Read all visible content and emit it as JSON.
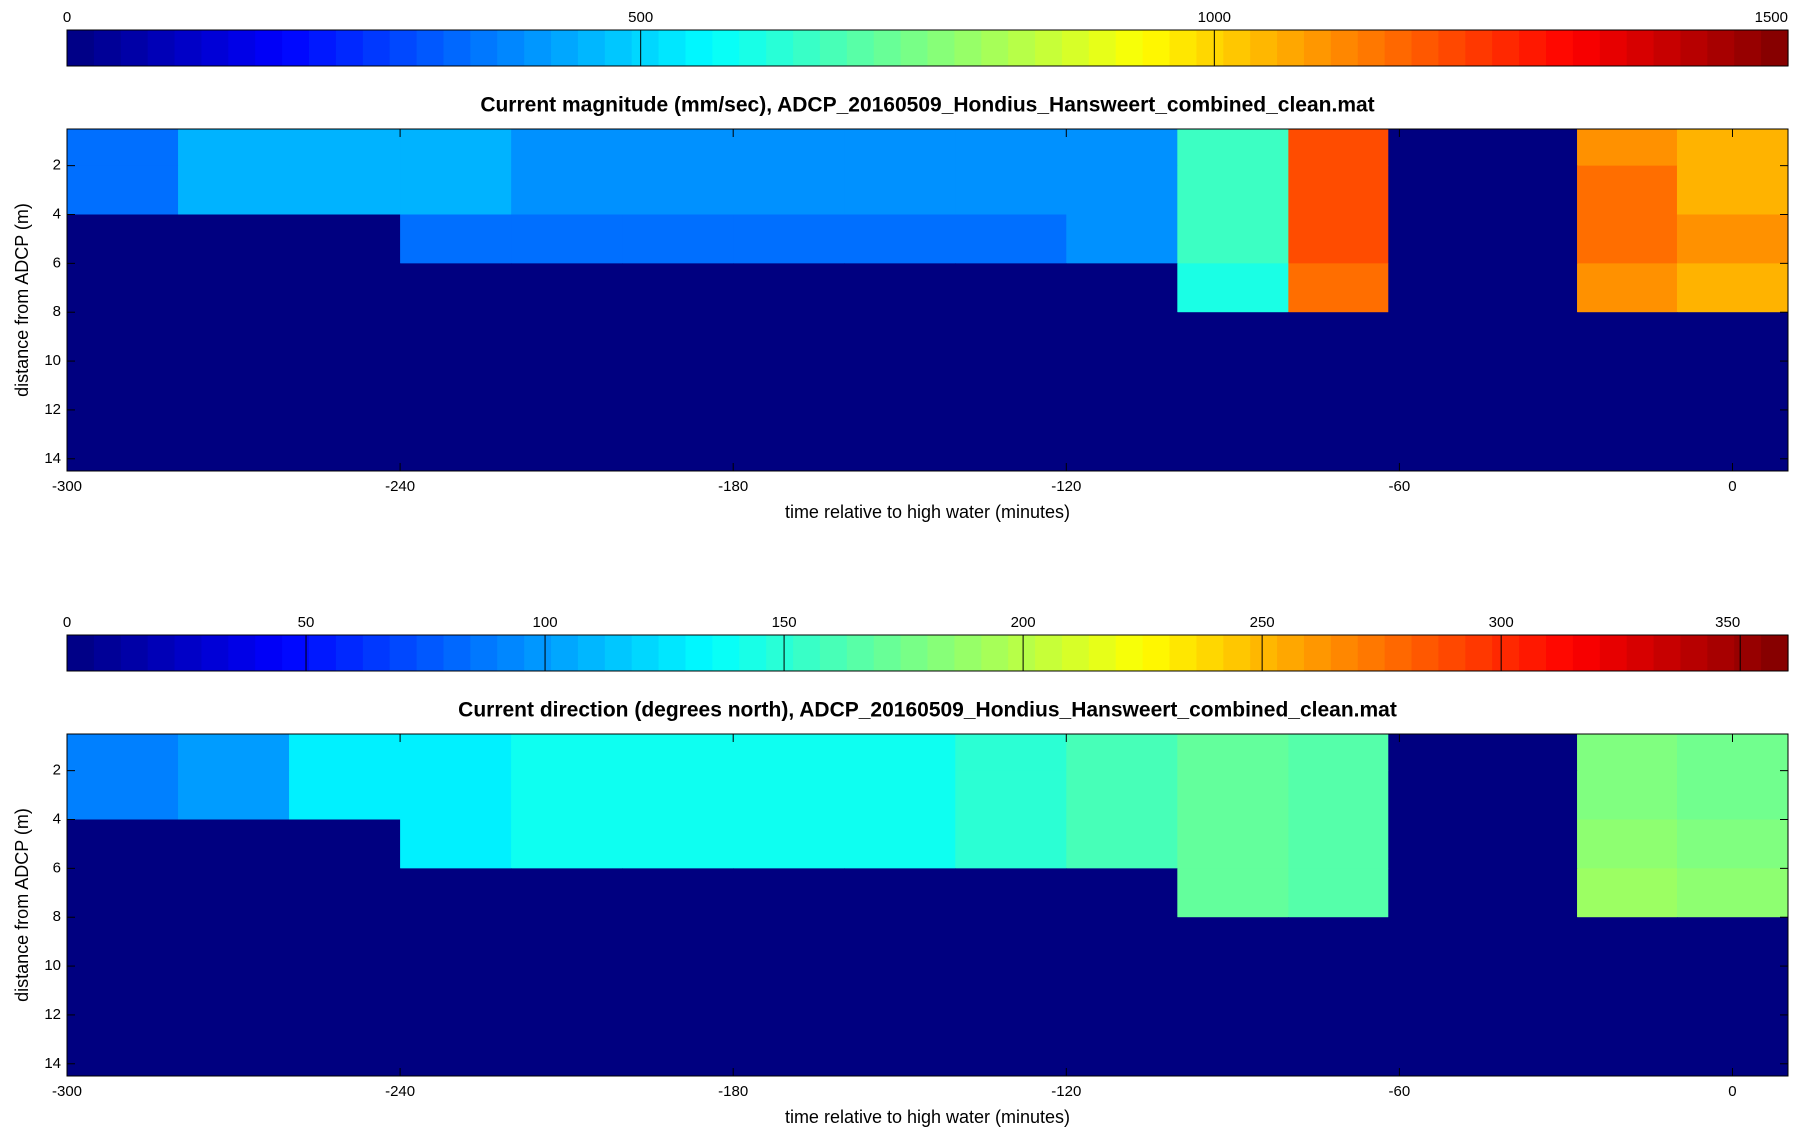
{
  "chart_data": [
    {
      "type": "heatmap",
      "title": "Current magnitude (mm/sec), ADCP_20160509_Hondius_Hansweert_combined_clean.mat",
      "xlabel": "time relative to high water (minutes)",
      "ylabel": "distance from ADCP (m)",
      "colormap": "jet",
      "clim": [
        0,
        1500
      ],
      "cticks": [
        0,
        500,
        1000,
        1500
      ],
      "xlim": [
        -300,
        10
      ],
      "xticks": [
        -300,
        -240,
        -180,
        -120,
        -60,
        0
      ],
      "ylim": [
        0.5,
        14.5
      ],
      "y_inverted": true,
      "yticks": [
        2,
        4,
        6,
        8,
        10,
        12,
        14
      ],
      "xbins": [
        -300,
        -280,
        -260,
        -240,
        -220,
        -200,
        -180,
        -160,
        -140,
        -120,
        -100,
        -80,
        -62,
        -28,
        -10,
        10
      ],
      "ybins": [
        0.5,
        2,
        4,
        6,
        8,
        10,
        14.5
      ],
      "z": [
        [
          350,
          450,
          450,
          450,
          400,
          400,
          400,
          400,
          400,
          400,
          650,
          1200,
          0,
          1100,
          1050
        ],
        [
          350,
          450,
          450,
          450,
          400,
          400,
          400,
          400,
          400,
          400,
          650,
          1200,
          0,
          1150,
          1050
        ],
        [
          0,
          0,
          0,
          350,
          350,
          350,
          350,
          350,
          350,
          400,
          650,
          1200,
          0,
          1150,
          1100
        ],
        [
          0,
          0,
          0,
          0,
          0,
          0,
          0,
          0,
          0,
          0,
          600,
          1150,
          0,
          1100,
          1050
        ],
        [
          0,
          0,
          0,
          0,
          0,
          0,
          0,
          0,
          0,
          0,
          0,
          0,
          0,
          0,
          0
        ],
        [
          0,
          0,
          0,
          0,
          0,
          0,
          0,
          0,
          0,
          0,
          0,
          0,
          0,
          0,
          0
        ]
      ]
    },
    {
      "type": "heatmap",
      "title": "Current direction (degrees north), ADCP_20160509_Hondius_Hansweert_combined_clean.mat",
      "xlabel": "time relative to high water (minutes)",
      "ylabel": "distance from ADCP (m)",
      "colormap": "jet",
      "clim": [
        0,
        360
      ],
      "cticks": [
        0,
        50,
        100,
        150,
        200,
        250,
        300,
        350
      ],
      "xlim": [
        -300,
        10
      ],
      "xticks": [
        -300,
        -240,
        -180,
        -120,
        -60,
        0
      ],
      "ylim": [
        0.5,
        14.5
      ],
      "y_inverted": true,
      "yticks": [
        2,
        4,
        6,
        8,
        10,
        12,
        14
      ],
      "xbins": [
        -300,
        -280,
        -260,
        -240,
        -220,
        -200,
        -180,
        -160,
        -140,
        -120,
        -100,
        -80,
        -62,
        -28,
        -10,
        10
      ],
      "ybins": [
        0.5,
        2,
        4,
        6,
        8,
        10,
        14.5
      ],
      "z": [
        [
          90,
          100,
          130,
          130,
          140,
          140,
          140,
          140,
          150,
          160,
          170,
          165,
          0,
          180,
          175
        ],
        [
          90,
          100,
          130,
          130,
          140,
          140,
          140,
          140,
          150,
          160,
          170,
          165,
          0,
          180,
          175
        ],
        [
          0,
          0,
          0,
          130,
          140,
          140,
          140,
          140,
          150,
          160,
          170,
          165,
          0,
          185,
          180
        ],
        [
          0,
          0,
          0,
          0,
          0,
          0,
          0,
          0,
          0,
          0,
          170,
          165,
          0,
          190,
          185
        ],
        [
          0,
          0,
          0,
          0,
          0,
          0,
          0,
          0,
          0,
          0,
          0,
          0,
          0,
          0,
          0
        ],
        [
          0,
          0,
          0,
          0,
          0,
          0,
          0,
          0,
          0,
          0,
          0,
          0,
          0,
          0,
          0
        ]
      ]
    }
  ]
}
